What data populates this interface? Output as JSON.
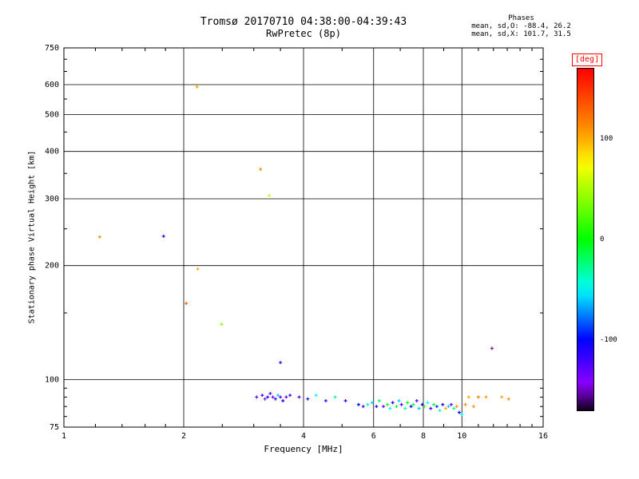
{
  "title": "Tromsø 20170710 04:38:00-04:39:43",
  "subtitle": "RwPretec (8p)",
  "stats": {
    "heading": "Phases",
    "line_o": "mean, sd,O: -88.4, 26.2",
    "line_x": "mean, sd,X: 101.7, 31.5"
  },
  "colorbar": {
    "label": "[deg]",
    "label_color": "#ff0000",
    "ticks": [
      100,
      0,
      -100
    ],
    "range": [
      -170,
      170
    ]
  },
  "chart_data": {
    "type": "scatter",
    "title": "Tromsø 20170710 04:38:00-04:39:43",
    "subtitle": "RwPretec (8p)",
    "xlabel": "Frequency [MHz]",
    "ylabel": "Stationary phase Virtual Height [km]",
    "xscale": "log",
    "yscale": "log",
    "xlim": [
      1,
      16
    ],
    "ylim": [
      75,
      750
    ],
    "x_ticks": [
      1,
      2,
      4,
      6,
      8,
      10,
      16
    ],
    "y_ticks": [
      75,
      100,
      200,
      300,
      400,
      500,
      600,
      750
    ],
    "x_minor_ticks": [
      1.2,
      1.4,
      1.6,
      1.8,
      2.5,
      3,
      3.5,
      5,
      7,
      9,
      11,
      12,
      13,
      14,
      15
    ],
    "y_minor_ticks": [
      80,
      85,
      90,
      95,
      150,
      250,
      350,
      450,
      550,
      650,
      700
    ],
    "x_gridlines": [
      2,
      4,
      6,
      8,
      10
    ],
    "y_gridlines": [
      100,
      200,
      300,
      400,
      500,
      600
    ],
    "marker": "plus",
    "grid": true,
    "legend": "none",
    "point_format": [
      "frequency_MHz",
      "virtual_height_km",
      "phase_deg"
    ],
    "points": [
      [
        1.23,
        238,
        110
      ],
      [
        1.78,
        239,
        -110
      ],
      [
        2.16,
        592,
        105
      ],
      [
        2.17,
        196,
        100
      ],
      [
        2.03,
        159,
        130
      ],
      [
        2.49,
        140,
        40
      ],
      [
        3.12,
        359,
        110
      ],
      [
        3.28,
        306,
        55
      ],
      [
        3.5,
        111,
        -120
      ],
      [
        11.9,
        121,
        -152
      ],
      [
        3.05,
        90,
        -130
      ],
      [
        3.15,
        91,
        -120
      ],
      [
        3.2,
        89,
        -140
      ],
      [
        3.25,
        90,
        -110
      ],
      [
        3.3,
        92,
        -125
      ],
      [
        3.35,
        90,
        -135
      ],
      [
        3.4,
        89,
        -115
      ],
      [
        3.45,
        91,
        -60
      ],
      [
        3.5,
        90,
        -125
      ],
      [
        3.55,
        88,
        -105
      ],
      [
        3.62,
        90,
        -130
      ],
      [
        3.7,
        91,
        -120
      ],
      [
        3.9,
        90,
        -120
      ],
      [
        4.1,
        89,
        -95
      ],
      [
        4.3,
        91,
        -45
      ],
      [
        4.55,
        88,
        -120
      ],
      [
        4.8,
        90,
        -30
      ],
      [
        5.1,
        88,
        -110
      ],
      [
        5.5,
        86,
        -100
      ],
      [
        5.65,
        85,
        -120
      ],
      [
        5.8,
        86,
        -35
      ],
      [
        5.95,
        87,
        -60
      ],
      [
        6.1,
        85,
        -110
      ],
      [
        6.2,
        88,
        -20
      ],
      [
        6.35,
        85,
        -130
      ],
      [
        6.5,
        86,
        10
      ],
      [
        6.6,
        84,
        -50
      ],
      [
        6.7,
        87,
        -110
      ],
      [
        6.85,
        85,
        -10
      ],
      [
        6.95,
        88,
        -60
      ],
      [
        7.05,
        86,
        -120
      ],
      [
        7.2,
        84,
        -40
      ],
      [
        7.3,
        87,
        0
      ],
      [
        7.45,
        85,
        -100
      ],
      [
        7.55,
        86,
        -20
      ],
      [
        7.7,
        88,
        -130
      ],
      [
        7.8,
        84,
        -60
      ],
      [
        7.95,
        86,
        -110
      ],
      [
        8.05,
        85,
        20
      ],
      [
        8.2,
        87,
        -50
      ],
      [
        8.35,
        84,
        -120
      ],
      [
        8.5,
        86,
        -10
      ],
      [
        8.65,
        85,
        -90
      ],
      [
        8.8,
        83,
        -40
      ],
      [
        8.95,
        86,
        -110
      ],
      [
        9.1,
        84,
        100
      ],
      [
        9.25,
        85,
        -60
      ],
      [
        9.4,
        86,
        -130
      ],
      [
        9.55,
        84,
        -30
      ],
      [
        9.7,
        85,
        110
      ],
      [
        9.85,
        82,
        -100
      ],
      [
        10.0,
        81,
        -45
      ],
      [
        10.2,
        86,
        115
      ],
      [
        10.4,
        90,
        100
      ],
      [
        10.7,
        85,
        110
      ],
      [
        11.0,
        90,
        120
      ],
      [
        11.5,
        90,
        105
      ],
      [
        12.6,
        90,
        100
      ],
      [
        13.1,
        89,
        110
      ]
    ]
  }
}
